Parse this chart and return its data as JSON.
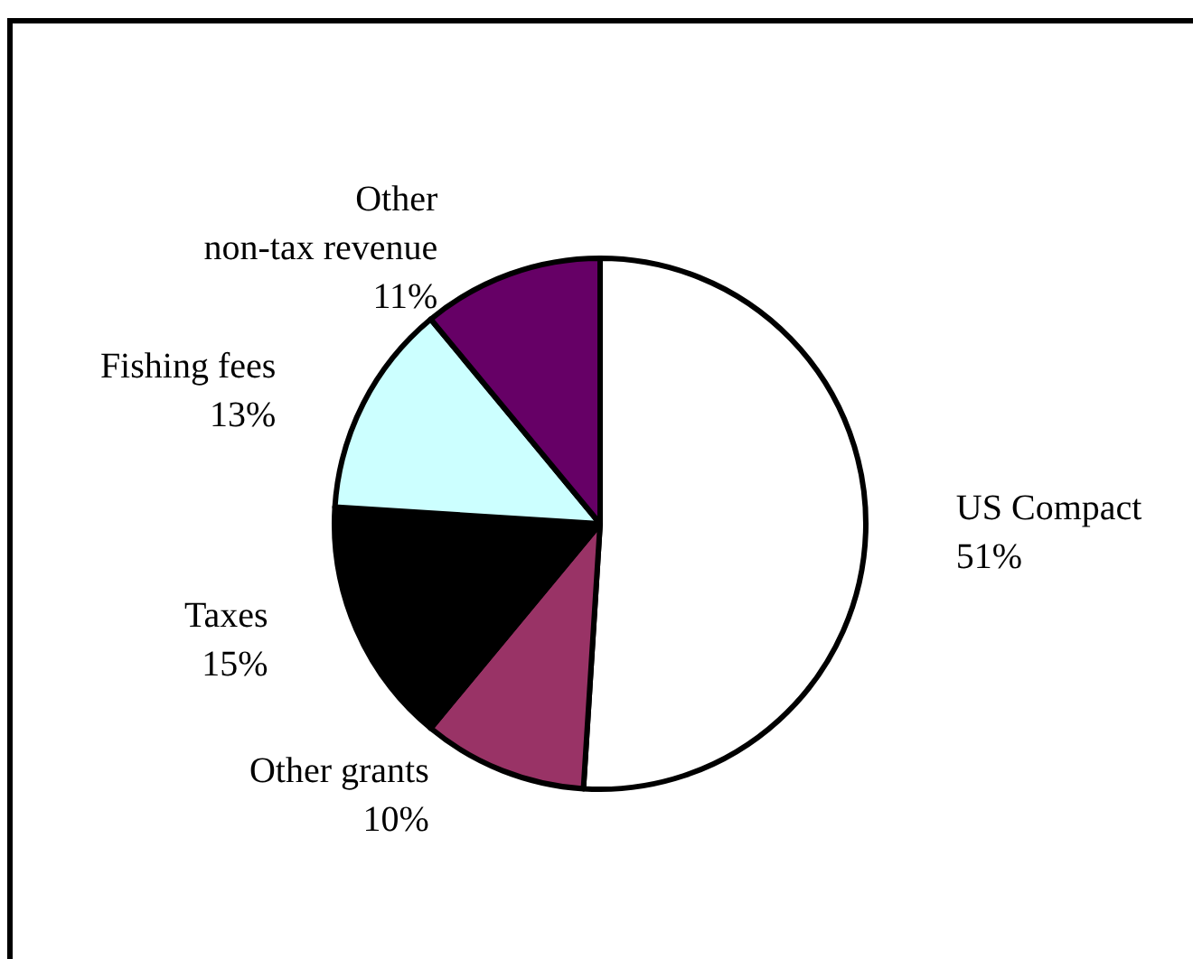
{
  "chart_data": {
    "type": "pie",
    "categories": [
      "US Compact",
      "Other grants",
      "Taxes",
      "Fishing fees",
      "Other\nnon-tax revenue"
    ],
    "values": [
      51,
      10,
      15,
      13,
      11
    ],
    "colors": [
      "#ffffff",
      "#993366",
      "#000000",
      "#ccffff",
      "#660066"
    ],
    "value_labels": [
      "51%",
      "10%",
      "15%",
      "13%",
      "11%"
    ],
    "legend": false
  }
}
